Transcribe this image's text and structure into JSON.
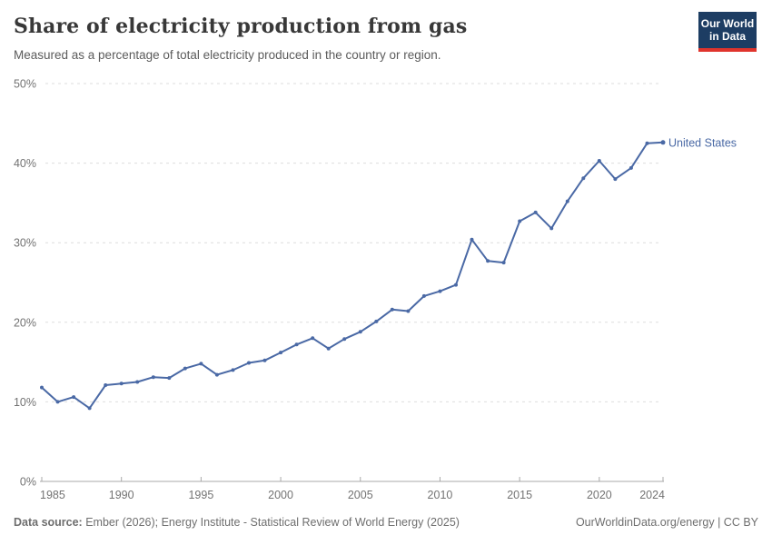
{
  "header": {
    "title": "Share of electricity production from gas",
    "subtitle": "Measured as a percentage of total electricity produced in the country or region."
  },
  "logo": {
    "line1": "Our World",
    "line2": "in Data",
    "bg_color": "#1d3d63",
    "bar_color": "#e0342c"
  },
  "chart_data": {
    "type": "line",
    "title": "Share of electricity production from gas",
    "subtitle": "Measured as a percentage of total electricity produced in the country or region.",
    "xlabel": "",
    "ylabel": "",
    "ylim": [
      0,
      50
    ],
    "yticks": [
      0,
      10,
      20,
      30,
      40,
      50
    ],
    "ytick_suffix": "%",
    "xticks": [
      1985,
      1990,
      1995,
      2000,
      2005,
      2010,
      2015,
      2020,
      2024
    ],
    "grid": "horizontal-dashed",
    "legend_position": "end-of-line-label",
    "x": [
      1985,
      1986,
      1987,
      1988,
      1989,
      1990,
      1991,
      1992,
      1993,
      1994,
      1995,
      1996,
      1997,
      1998,
      1999,
      2000,
      2001,
      2002,
      2003,
      2004,
      2005,
      2006,
      2007,
      2008,
      2009,
      2010,
      2011,
      2012,
      2013,
      2014,
      2015,
      2016,
      2017,
      2018,
      2019,
      2020,
      2021,
      2022,
      2023,
      2024
    ],
    "series": [
      {
        "name": "United States",
        "color": "#4a69a5",
        "values": [
          11.8,
          10.0,
          10.6,
          9.2,
          12.1,
          12.3,
          12.5,
          13.1,
          13.0,
          14.2,
          14.8,
          13.4,
          14.0,
          14.9,
          15.2,
          16.2,
          17.2,
          18.0,
          16.7,
          17.9,
          18.8,
          20.1,
          21.6,
          21.4,
          23.3,
          23.9,
          24.7,
          30.4,
          27.7,
          27.5,
          32.7,
          33.8,
          31.8,
          35.2,
          38.1,
          40.3,
          38.0,
          39.4,
          42.5,
          42.6
        ]
      }
    ]
  },
  "footer": {
    "source_label": "Data source:",
    "source_text": "Ember (2026); Energy Institute - Statistical Review of World Energy (2025)",
    "site_url": "OurWorldinData.org/energy",
    "separator": "|",
    "license": "CC BY"
  },
  "colors": {
    "line": "#4a69a5",
    "grid": "#dddddd",
    "axis": "#a8a8a8",
    "tick_label": "#737373",
    "title": "#383838",
    "subtitle": "#5b5b5b",
    "footer": "#6e6e6e"
  }
}
